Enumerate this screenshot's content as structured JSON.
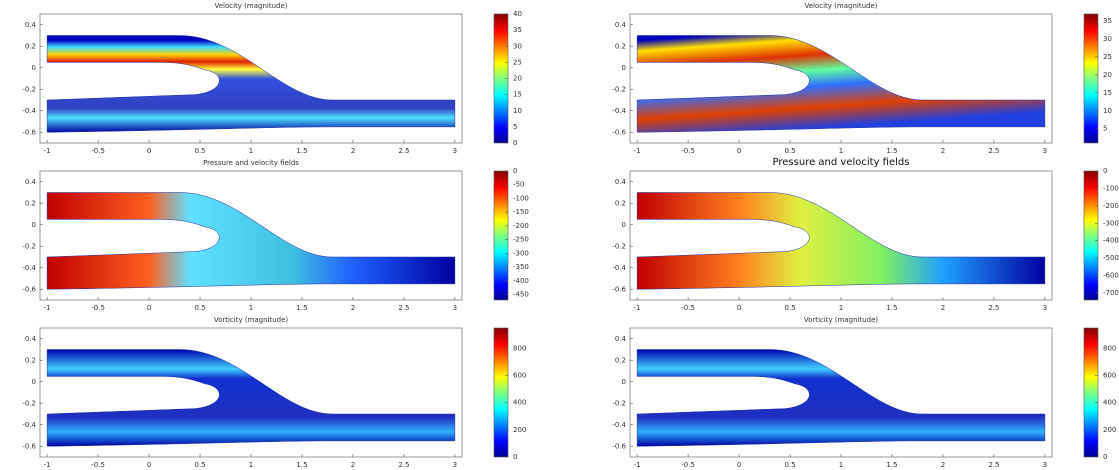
{
  "chart_data": [
    {
      "type": "field",
      "title": "Velocity (magnitude)",
      "xlim": [
        -1.07,
        3.07
      ],
      "xticks": [
        -1,
        -0.5,
        0,
        0.5,
        1,
        1.5,
        2,
        2.5,
        3
      ],
      "ylim": [
        -0.7,
        0.5
      ],
      "yticks": [
        0.4,
        0.2,
        0,
        -0.2,
        -0.4,
        -0.6
      ],
      "colorbar": {
        "lim": [
          0,
          40
        ],
        "ticks": [
          40,
          35,
          30,
          25,
          20,
          15,
          10,
          5,
          0
        ]
      }
    },
    {
      "type": "field",
      "title": "Velocity (magnitude)",
      "xlim": [
        -1.07,
        3.07
      ],
      "xticks": [
        -1,
        -0.5,
        0,
        0.5,
        1,
        1.5,
        2,
        2.5,
        3
      ],
      "ylim": [
        -0.7,
        0.5
      ],
      "yticks": [
        0.4,
        0.2,
        0,
        -0.2,
        -0.4,
        -0.6
      ],
      "colorbar": {
        "lim": [
          1,
          37
        ],
        "ticks": [
          35,
          30,
          25,
          20,
          15,
          10,
          5
        ]
      }
    },
    {
      "type": "field",
      "title": "Pressure and velocity fields",
      "xlim": [
        -1.07,
        3.07
      ],
      "xticks": [
        -1,
        -0.5,
        0,
        0.5,
        1,
        1.5,
        2,
        2.5,
        3
      ],
      "ylim": [
        -0.7,
        0.5
      ],
      "yticks": [
        0.4,
        0.2,
        0,
        -0.2,
        -0.4,
        -0.6
      ],
      "colorbar": {
        "lim": [
          -470,
          0
        ],
        "ticks": [
          0,
          -50,
          -100,
          -150,
          -200,
          -250,
          -300,
          -350,
          -400,
          -450
        ]
      }
    },
    {
      "type": "field",
      "title": "Pressure and velocity fields",
      "xlim": [
        -1.07,
        3.07
      ],
      "xticks": [
        -1,
        -0.5,
        0,
        0.5,
        1,
        1.5,
        2,
        2.5,
        3
      ],
      "ylim": [
        -0.7,
        0.5
      ],
      "yticks": [
        0.4,
        0.2,
        0,
        -0.2,
        -0.4,
        -0.6
      ],
      "colorbar": {
        "lim": [
          -740,
          0
        ],
        "ticks": [
          0,
          -100,
          -200,
          -300,
          -400,
          -500,
          -600,
          -700
        ]
      }
    },
    {
      "type": "field",
      "title": "Vorticity (magnitude)",
      "xlim": [
        -1.07,
        3.07
      ],
      "xticks": [
        -1,
        -0.5,
        0,
        0.5,
        1,
        1.5,
        2,
        2.5,
        3
      ],
      "ylim": [
        -0.7,
        0.5
      ],
      "yticks": [
        0.4,
        0.2,
        0,
        -0.2,
        -0.4,
        -0.6
      ],
      "colorbar": {
        "lim": [
          0,
          950
        ],
        "ticks": [
          800,
          600,
          400,
          200,
          0
        ]
      }
    },
    {
      "type": "field",
      "title": "Vorticity (magnitude)",
      "xlim": [
        -1.07,
        3.07
      ],
      "xticks": [
        -1,
        -0.5,
        0,
        0.5,
        1,
        1.5,
        2,
        2.5,
        3
      ],
      "ylim": [
        -0.7,
        0.5
      ],
      "yticks": [
        0.4,
        0.2,
        0,
        -0.2,
        -0.4,
        -0.6
      ],
      "colorbar": {
        "lim": [
          0,
          950
        ],
        "ticks": [
          800,
          600,
          400,
          200,
          0
        ]
      }
    }
  ]
}
